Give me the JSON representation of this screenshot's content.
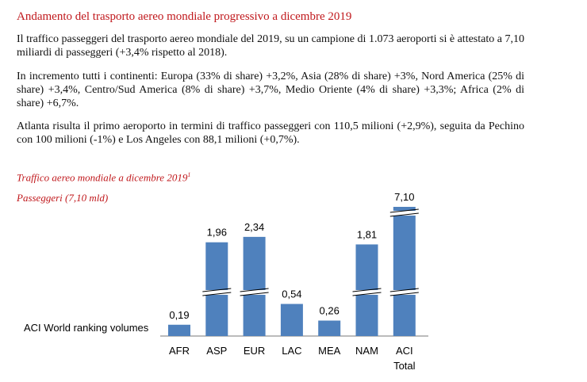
{
  "document": {
    "title": "Andamento del trasporto aereo mondiale progressivo a dicembre 2019",
    "paragraphs": [
      "Il traffico passeggeri del trasporto aereo mondiale del 2019, su un campione di 1.073 aeroporti si è attestato a 7,10 miliardi di passeggeri (+3,4% rispetto al 2018).",
      "In incremento tutti i continenti: Europa (33% di share) +3,2%, Asia (28% di share) +3%, Nord America (25% di share) +3,4%, Centro/Sud America (8% di share) +3,7%, Medio Oriente (4% di share) +3,3%; Africa (2% di share) +6,7%.",
      "Atlanta risulta il primo aeroporto in termini di traffico passeggeri con 110,5 milioni (+2,9%), seguita da Pechino con 100 milioni (-1%) e Los Angeles con 88,1 milioni (+0,7%)."
    ],
    "chart_caption": "Traffico aereo mondiale a dicembre 2019",
    "chart_caption_footnote": "1",
    "chart_subtitle": "Passeggeri (7,10 mld)"
  },
  "chart_data": {
    "type": "bar",
    "title": "Traffico aereo mondiale a dicembre 2019",
    "subtitle": "Passeggeri (7,10 mld)",
    "ylabel": "ACI World ranking volumes",
    "categories": [
      "AFR",
      "ASP",
      "EUR",
      "LAC",
      "MEA",
      "NAM",
      "ACI"
    ],
    "category_sublabels": [
      "",
      "",
      "",
      "",
      "",
      "",
      "Total"
    ],
    "values": [
      0.19,
      1.96,
      2.34,
      0.54,
      0.26,
      1.81,
      7.1
    ],
    "value_labels": [
      "0,19",
      "1,96",
      "2,34",
      "0,54",
      "0,26",
      "1,81",
      "7,10"
    ],
    "axis_breaks": {
      "ASP": 1,
      "EUR": 1,
      "NAM": 1,
      "ACI": 2
    },
    "bar_color": "#4f81bd",
    "grid": false,
    "legend": "none"
  }
}
